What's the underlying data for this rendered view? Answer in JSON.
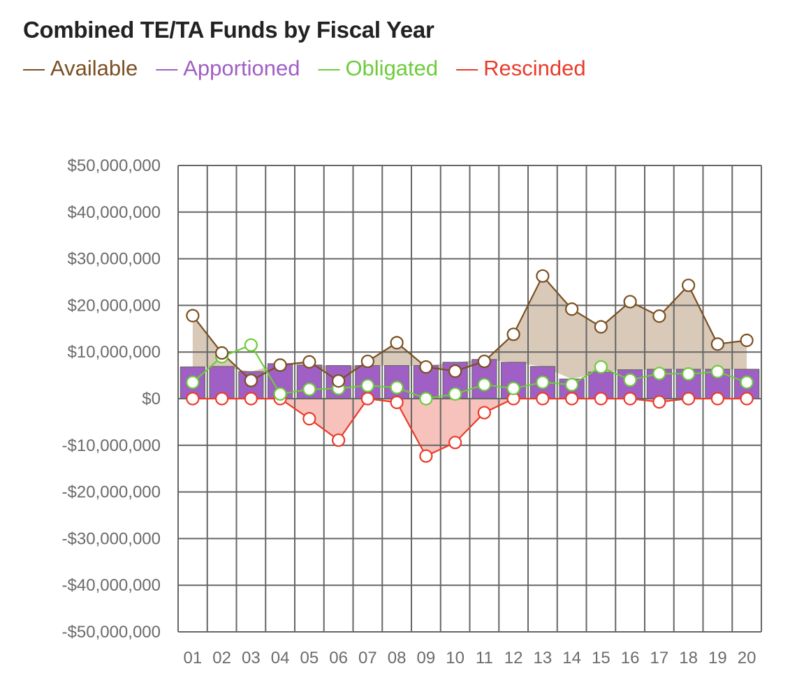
{
  "chart_data": {
    "type": "bar+line",
    "title": "Combined TE/TA Funds by Fiscal Year",
    "xlabel": "",
    "ylabel": "",
    "ylim": [
      -50000000,
      50000000
    ],
    "yticks": [
      50000000,
      40000000,
      30000000,
      20000000,
      10000000,
      0,
      -10000000,
      -20000000,
      -30000000,
      -40000000,
      -50000000
    ],
    "ytick_labels": [
      "$50,000,000",
      "$40,000,000",
      "$30,000,000",
      "$20,000,000",
      "$10,000,000",
      "$0",
      "-$10,000,000",
      "-$20,000,000",
      "-$30,000,000",
      "-$40,000,000",
      "-$50,000,000"
    ],
    "categories": [
      "01",
      "02",
      "03",
      "04",
      "05",
      "06",
      "07",
      "08",
      "09",
      "10",
      "11",
      "12",
      "13",
      "14",
      "15",
      "16",
      "17",
      "18",
      "19",
      "20"
    ],
    "grid": true,
    "legend_position": "top-left",
    "series": [
      {
        "name": "Available",
        "legend_label": "Available",
        "kind": "line-area",
        "color": "#7a4f21",
        "fill": "#d8c9b8",
        "values": [
          17800000,
          9800000,
          3900000,
          7200000,
          7900000,
          3800000,
          8000000,
          12000000,
          6800000,
          5900000,
          8000000,
          13800000,
          26300000,
          19200000,
          15400000,
          20800000,
          17700000,
          24300000,
          11700000,
          12500000
        ]
      },
      {
        "name": "Apportioned",
        "legend_label": "Apportioned",
        "kind": "bar",
        "color": "#a05fc4",
        "values": [
          6800000,
          6900000,
          5800000,
          7500000,
          7200000,
          7100000,
          7100000,
          7100000,
          7100000,
          7800000,
          8400000,
          7800000,
          6900000,
          4200000,
          5700000,
          6200000,
          6300000,
          6300000,
          6300000,
          6300000
        ]
      },
      {
        "name": "Obligated",
        "legend_label": "Obligated",
        "kind": "line",
        "color": "#6ccc3a",
        "values": [
          3500000,
          9000000,
          11500000,
          1000000,
          2000000,
          2200000,
          2800000,
          2400000,
          0,
          1000000,
          3000000,
          2200000,
          3500000,
          3000000,
          6800000,
          4000000,
          5400000,
          5300000,
          5800000,
          3500000
        ]
      },
      {
        "name": "Rescinded",
        "legend_label": "Rescinded",
        "kind": "line-area",
        "color": "#ea3b2a",
        "fill": "#f6c2bb",
        "values": [
          0,
          0,
          0,
          0,
          -4300000,
          -8900000,
          0,
          -800000,
          -12300000,
          -9400000,
          -3000000,
          0,
          0,
          0,
          0,
          0,
          -700000,
          0,
          0,
          0
        ]
      }
    ]
  }
}
